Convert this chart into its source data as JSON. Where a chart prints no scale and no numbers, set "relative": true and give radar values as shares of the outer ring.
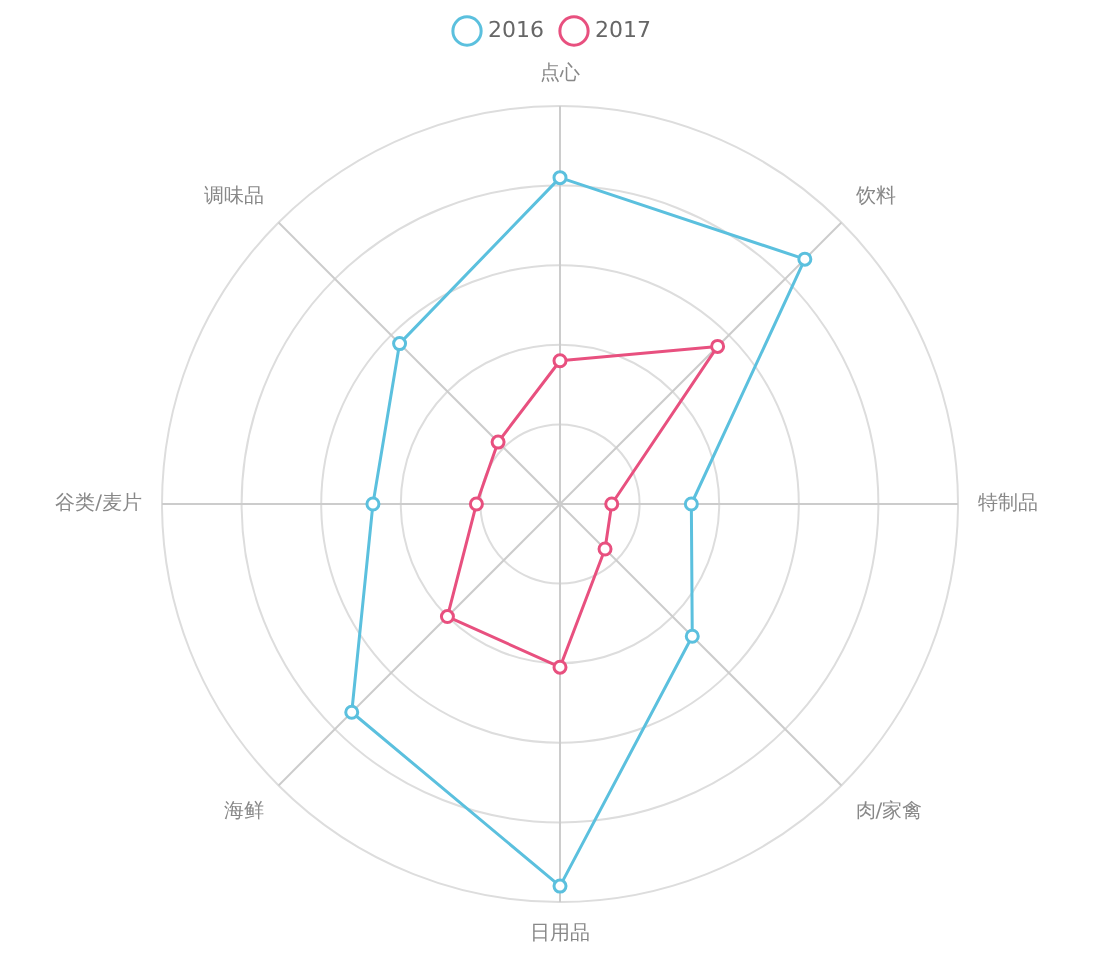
{
  "chart_data": {
    "type": "radar",
    "relative": true,
    "legend": "top",
    "marker": "circle",
    "grid": true,
    "categories": [
      "点心",
      "饮料",
      "特制品",
      "肉/家禽",
      "日用品",
      "海鲜",
      "谷类/麦片",
      "调味品"
    ],
    "series": [
      {
        "name": "2016",
        "color": "#5bc0de",
        "values": [
          0.82,
          0.87,
          0.33,
          0.47,
          0.96,
          0.74,
          0.47,
          0.57
        ]
      },
      {
        "name": "2017",
        "color": "#e8507f",
        "values": [
          0.36,
          0.56,
          0.13,
          0.16,
          0.41,
          0.4,
          0.21,
          0.22
        ]
      }
    ]
  }
}
